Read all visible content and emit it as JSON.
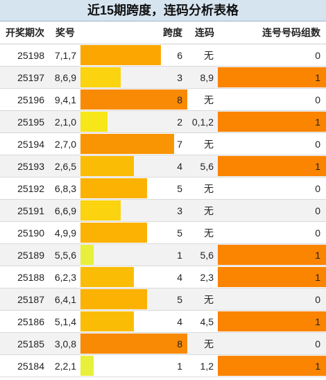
{
  "title": "近15期跨度，连码分析表格",
  "headers": {
    "date": "开奖期次",
    "number": "奖号",
    "span": "跨度",
    "consec": "连码",
    "groups": "连号号码组数"
  },
  "colors": {
    "span_1": "#e8f03c",
    "span_2": "#f7e718",
    "span_3": "#fbd30f",
    "span_4": "#fbbc06",
    "span_5": "#fbb203",
    "span_6": "#fca602",
    "span_7": "#f99503",
    "span_8": "#f88a05",
    "groups_fill": "#fb8400",
    "alt_row": "#f2f2f2"
  },
  "span_max": 8,
  "rows": [
    {
      "date": "25198",
      "number": "7,1,7",
      "span": "6",
      "consec": "无",
      "groups": "0"
    },
    {
      "date": "25197",
      "number": "8,6,9",
      "span": "3",
      "consec": "8,9",
      "groups": "1"
    },
    {
      "date": "25196",
      "number": "9,4,1",
      "span": "8",
      "consec": "无",
      "groups": "0"
    },
    {
      "date": "25195",
      "number": "2,1,0",
      "span": "2",
      "consec": "0,1,2",
      "groups": "1"
    },
    {
      "date": "25194",
      "number": "2,7,0",
      "span": "7",
      "consec": "无",
      "groups": "0"
    },
    {
      "date": "25193",
      "number": "2,6,5",
      "span": "4",
      "consec": "5,6",
      "groups": "1"
    },
    {
      "date": "25192",
      "number": "6,8,3",
      "span": "5",
      "consec": "无",
      "groups": "0"
    },
    {
      "date": "25191",
      "number": "6,6,9",
      "span": "3",
      "consec": "无",
      "groups": "0"
    },
    {
      "date": "25190",
      "number": "4,9,9",
      "span": "5",
      "consec": "无",
      "groups": "0"
    },
    {
      "date": "25189",
      "number": "5,5,6",
      "span": "1",
      "consec": "5,6",
      "groups": "1"
    },
    {
      "date": "25188",
      "number": "6,2,3",
      "span": "4",
      "consec": "2,3",
      "groups": "1"
    },
    {
      "date": "25187",
      "number": "6,4,1",
      "span": "5",
      "consec": "无",
      "groups": "0"
    },
    {
      "date": "25186",
      "number": "5,1,4",
      "span": "4",
      "consec": "4,5",
      "groups": "1"
    },
    {
      "date": "25185",
      "number": "3,0,8",
      "span": "8",
      "consec": "无",
      "groups": "0"
    },
    {
      "date": "25184",
      "number": "2,2,1",
      "span": "1",
      "consec": "1,2",
      "groups": "1"
    }
  ]
}
